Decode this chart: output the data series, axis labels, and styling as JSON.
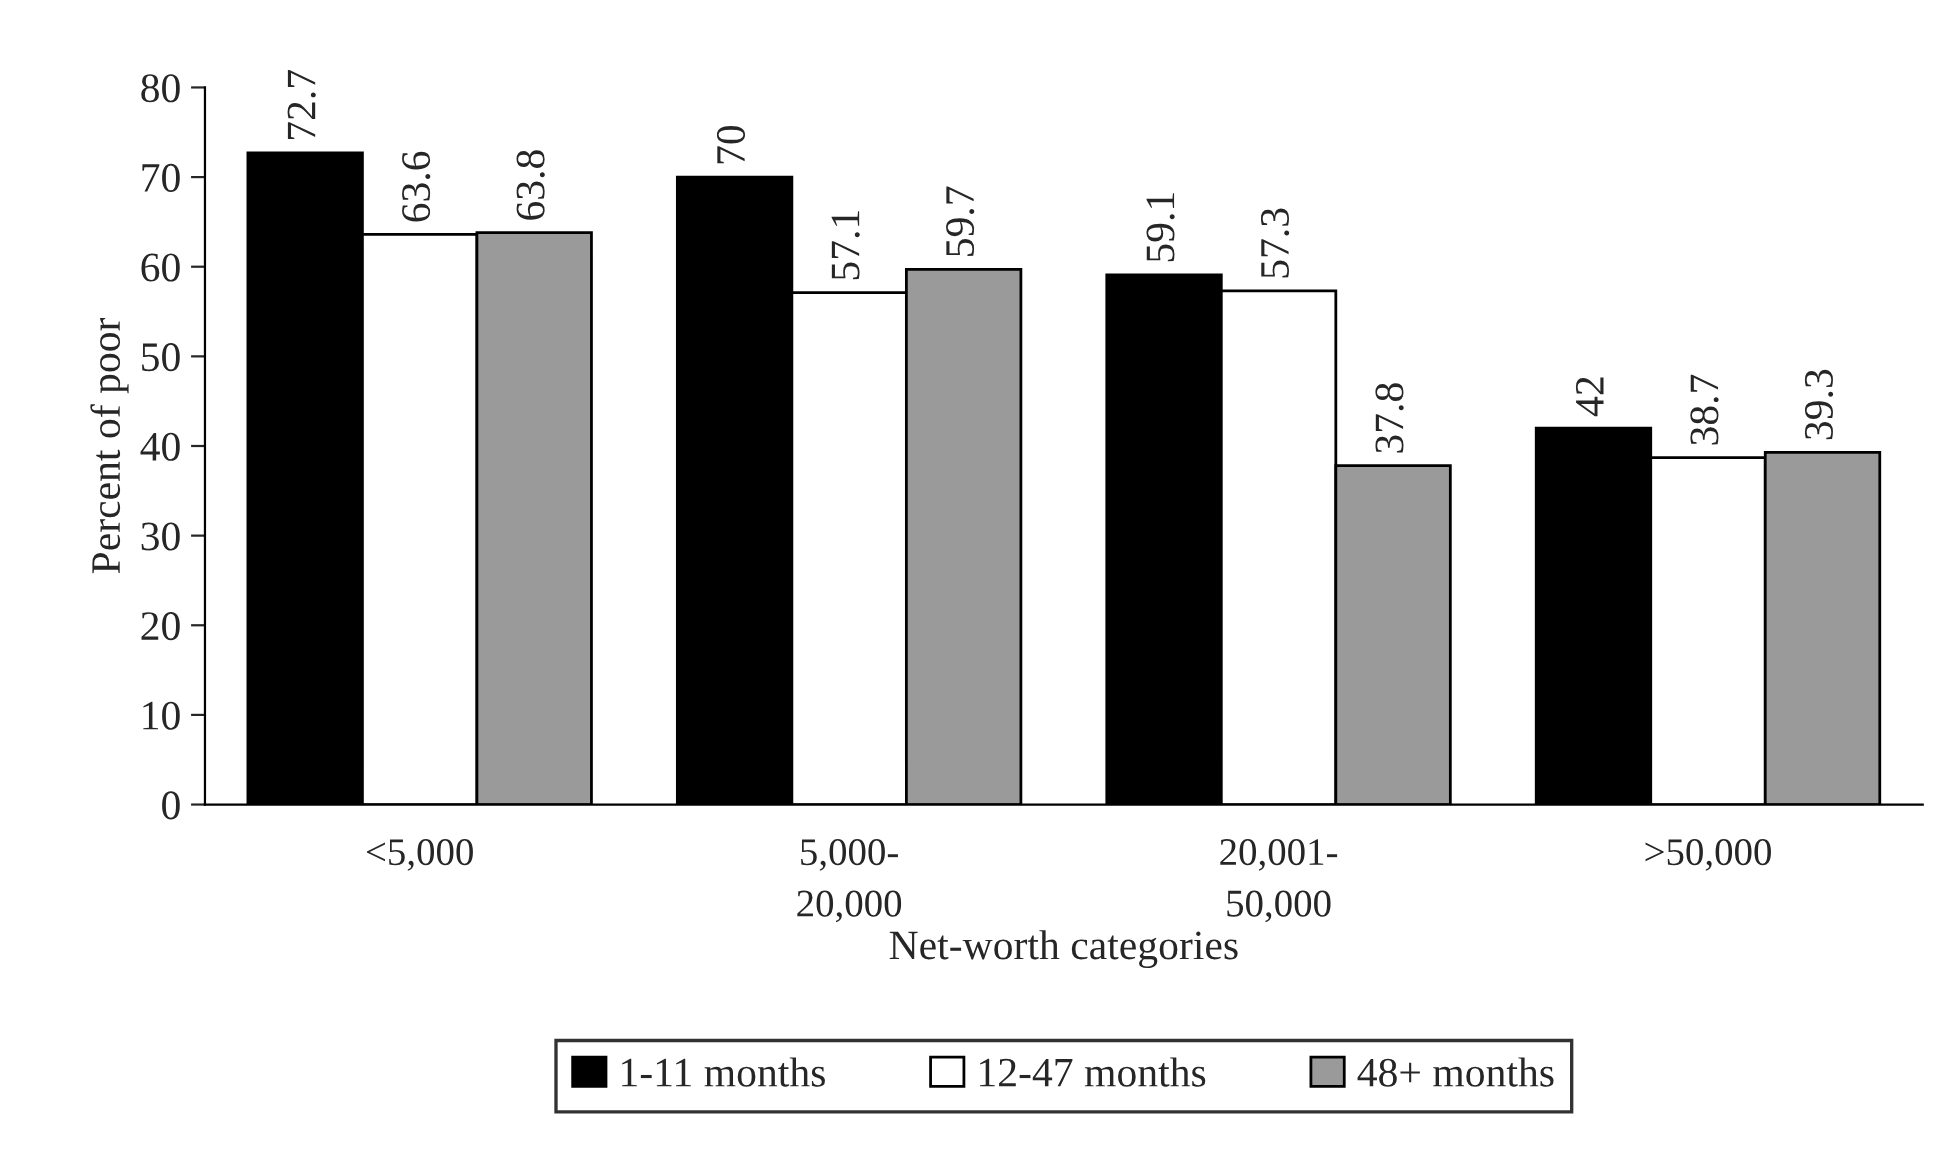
{
  "chart_data": {
    "type": "bar",
    "xlabel": "Net-worth categories",
    "ylabel": "Percent of poor",
    "categories": [
      "<5,000",
      "5,000-\n20,000",
      "20,001-\n50,000",
      ">50,000"
    ],
    "series": [
      {
        "name": "1-11 months",
        "color": "#000000",
        "values": [
          72.7,
          70,
          59.1,
          42
        ]
      },
      {
        "name": "12-47 months",
        "color": "#ffffff",
        "values": [
          63.6,
          57.1,
          57.3,
          38.7
        ]
      },
      {
        "name": "48+ months",
        "color": "#9a9a9a",
        "values": [
          63.8,
          59.7,
          37.8,
          39.3
        ]
      }
    ],
    "ylim": [
      0,
      80
    ],
    "yticks": [
      0,
      10,
      20,
      30,
      40,
      50,
      60,
      70,
      80
    ],
    "data_labels": true,
    "grid": false,
    "legend": "bottom"
  }
}
